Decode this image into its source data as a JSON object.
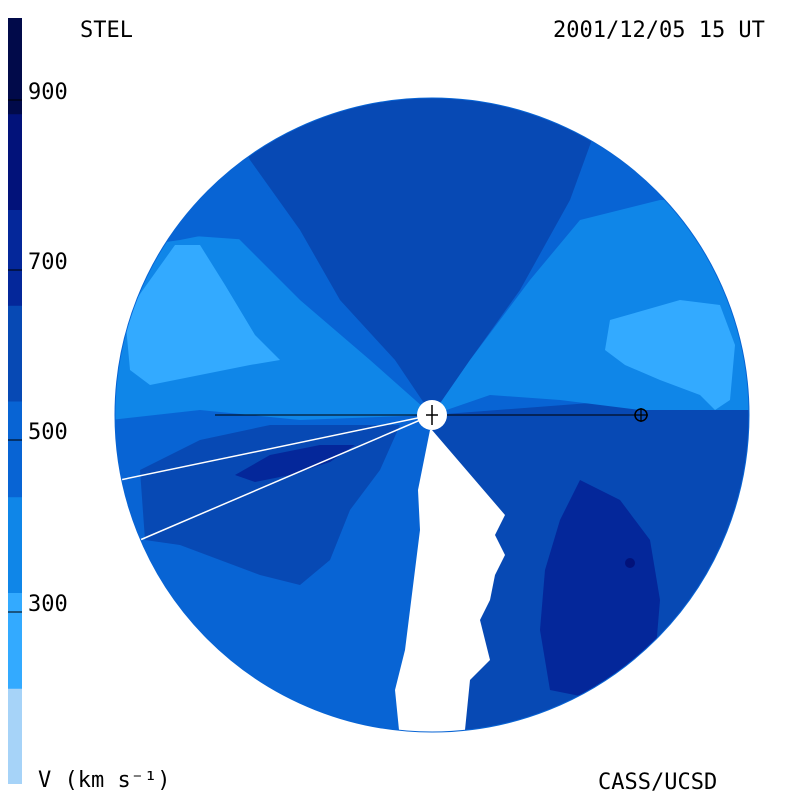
{
  "header": {
    "observatory": "STEL",
    "timestamp": "2001/12/05 15 UT"
  },
  "footer": {
    "unit_label": "V (km s⁻¹)",
    "credit": "CASS/UCSD"
  },
  "colorbar": {
    "ticks": [
      "900",
      "700",
      "500",
      "300"
    ],
    "bands": [
      "#a6d3f8",
      "#33aaff",
      "#0f86e8",
      "#0864d4",
      "#0749b4",
      "#04279a",
      "#02127a",
      "#010a4a"
    ]
  },
  "map": {
    "type": "solar wind speed map",
    "color_scale": "8-level blue, light = slow, dark = fast",
    "center_marker": "sun",
    "earth_marker": "earth-symbol"
  }
}
